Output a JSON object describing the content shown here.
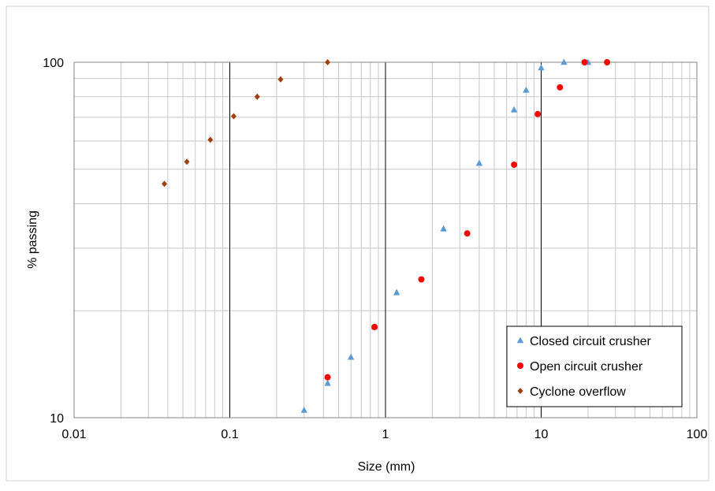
{
  "chart_data": {
    "type": "scatter",
    "title": "",
    "xlabel": "Size (mm)",
    "ylabel": "% passing",
    "x_scale": "log",
    "y_scale": "log",
    "xlim": [
      0.01,
      100
    ],
    "ylim": [
      10,
      100
    ],
    "x_ticks": [
      0.01,
      0.1,
      1,
      10,
      100
    ],
    "y_ticks": [
      10,
      100
    ],
    "x_tick_labels": [
      "0.01",
      "0.1",
      "1",
      "10",
      "100"
    ],
    "y_tick_labels": [
      "10",
      "100"
    ],
    "grid": true,
    "legend_position": "bottom-right",
    "series": [
      {
        "name": "Closed circuit crusher",
        "marker": "triangle",
        "color": "#5B9BD5",
        "x": [
          0.3,
          0.425,
          0.6,
          0.85,
          1.18,
          2.36,
          4.0,
          6.7,
          8.0,
          10.0,
          14.0,
          20.0
        ],
        "y": [
          10.5,
          12.5,
          14.8,
          18.0,
          22.5,
          34.0,
          52.0,
          73.5,
          83.5,
          96.5,
          100,
          100
        ]
      },
      {
        "name": "Open circuit crusher",
        "marker": "circle",
        "color": "#FF0000",
        "x": [
          0.425,
          0.85,
          1.7,
          3.35,
          6.7,
          9.5,
          13.2,
          19.0,
          26.5
        ],
        "y": [
          13.0,
          18.0,
          24.5,
          33.0,
          51.5,
          71.5,
          85.0,
          100,
          100
        ]
      },
      {
        "name": "Cyclone overflow",
        "marker": "diamond",
        "color": "#A0410D",
        "x": [
          0.038,
          0.053,
          0.075,
          0.106,
          0.15,
          0.212,
          0.425
        ],
        "y": [
          45.5,
          52.5,
          60.5,
          70.5,
          80.0,
          89.5,
          100
        ]
      }
    ]
  }
}
